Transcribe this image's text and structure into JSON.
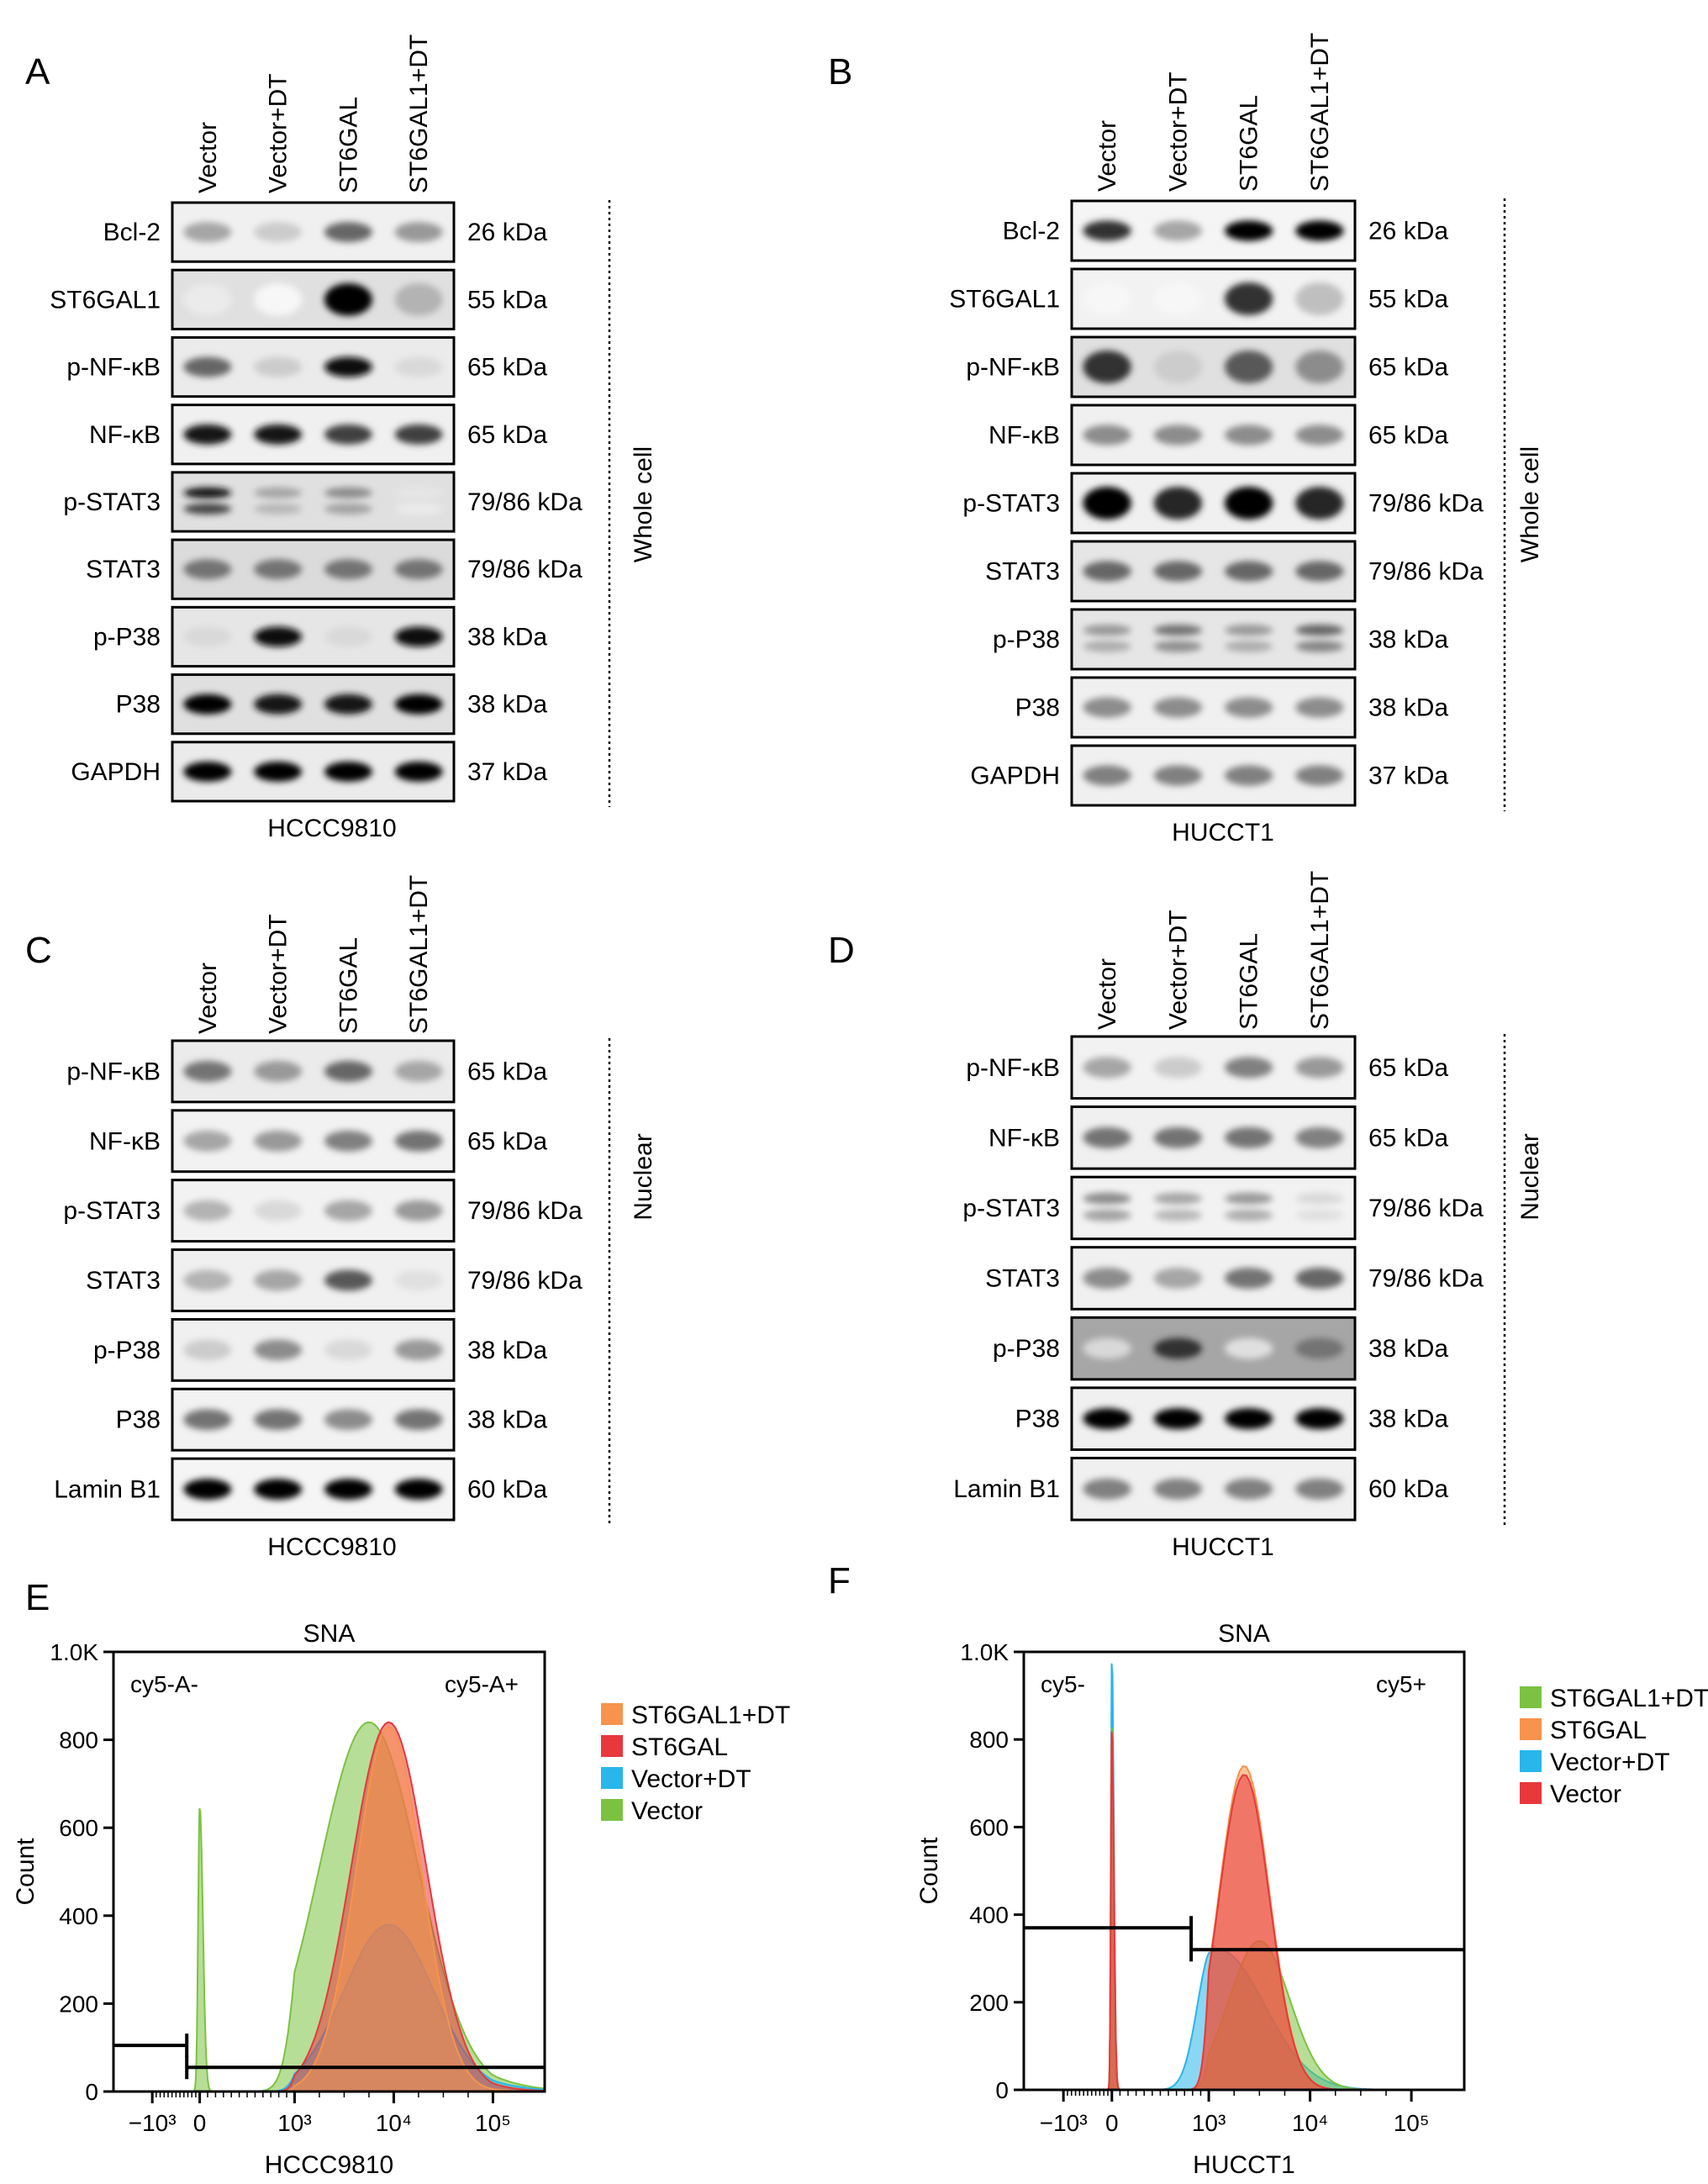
{
  "panels": [
    {
      "id": "wb_a",
      "letter": "A",
      "lanes": [
        "Vector",
        "Vector+DT",
        "ST6GAL",
        "ST6GAL1+DT"
      ],
      "cell_line": "HCCC9810",
      "fraction": "Whole cell",
      "rows": [
        {
          "protein": "Bcl-2",
          "kda": "26 kDa",
          "bands": [
            0.35,
            0.2,
            0.6,
            0.4
          ],
          "bg": 0.06
        },
        {
          "protein": "ST6GAL1",
          "kda": "55 kDa",
          "bands": [
            0.08,
            0.03,
            1.0,
            0.3
          ],
          "bg": 0.12,
          "tall": true
        },
        {
          "protein": "p-NF-κB",
          "kda": "65 kDa",
          "bands": [
            0.6,
            0.2,
            0.95,
            0.15
          ],
          "bg": 0.08
        },
        {
          "protein": "NF-κB",
          "kda": "65 kDa",
          "bands": [
            0.9,
            0.9,
            0.75,
            0.75
          ],
          "bg": 0.06
        },
        {
          "protein": "p-STAT3",
          "kda": "79/86 kDa",
          "bands": [
            0.9,
            0.35,
            0.45,
            0.1
          ],
          "bg": 0.12,
          "double": true
        },
        {
          "protein": "STAT3",
          "kda": "79/86 kDa",
          "bands": [
            0.55,
            0.55,
            0.55,
            0.55
          ],
          "bg": 0.14
        },
        {
          "protein": "p-P38",
          "kda": "38 kDa",
          "bands": [
            0.15,
            0.95,
            0.15,
            0.95
          ],
          "bg": 0.1
        },
        {
          "protein": "P38",
          "kda": "38 kDa",
          "bands": [
            1.0,
            0.9,
            0.9,
            1.0
          ],
          "bg": 0.12
        },
        {
          "protein": "GAPDH",
          "kda": "37 kDa",
          "bands": [
            1.0,
            1.0,
            1.0,
            1.0
          ],
          "bg": 0.08
        }
      ]
    },
    {
      "id": "wb_b",
      "letter": "B",
      "lanes": [
        "Vector",
        "Vector+DT",
        "ST6GAL",
        "ST6GAL1+DT"
      ],
      "cell_line": "HUCCT1",
      "fraction": "Whole cell",
      "rows": [
        {
          "protein": "Bcl-2",
          "kda": "26 kDa",
          "bands": [
            0.8,
            0.35,
            1.0,
            1.0
          ],
          "bg": 0.04
        },
        {
          "protein": "ST6GAL1",
          "kda": "55 kDa",
          "bands": [
            0.03,
            0.03,
            0.8,
            0.25
          ],
          "bg": 0.05,
          "tall": true
        },
        {
          "protein": "p-NF-κB",
          "kda": "65 kDa",
          "bands": [
            0.8,
            0.2,
            0.65,
            0.45
          ],
          "bg": 0.12,
          "tall": true
        },
        {
          "protein": "NF-κB",
          "kda": "65 kDa",
          "bands": [
            0.45,
            0.45,
            0.45,
            0.45
          ],
          "bg": 0.06
        },
        {
          "protein": "p-STAT3",
          "kda": "79/86 kDa",
          "bands": [
            1.0,
            0.85,
            1.0,
            0.85
          ],
          "bg": 0.06,
          "tall": true
        },
        {
          "protein": "STAT3",
          "kda": "79/86 kDa",
          "bands": [
            0.6,
            0.6,
            0.6,
            0.6
          ],
          "bg": 0.1
        },
        {
          "protein": "p-P38",
          "kda": "38 kDa",
          "bands": [
            0.4,
            0.55,
            0.4,
            0.6
          ],
          "bg": 0.1,
          "double": true
        },
        {
          "protein": "P38",
          "kda": "38 kDa",
          "bands": [
            0.45,
            0.45,
            0.45,
            0.45
          ],
          "bg": 0.06
        },
        {
          "protein": "GAPDH",
          "kda": "37 kDa",
          "bands": [
            0.5,
            0.5,
            0.5,
            0.5
          ],
          "bg": 0.06
        }
      ]
    },
    {
      "id": "wb_c",
      "letter": "C",
      "lanes": [
        "Vector",
        "Vector+DT",
        "ST6GAL",
        "ST6GAL1+DT"
      ],
      "cell_line": "HCCC9810",
      "fraction": "Nuclear",
      "rows": [
        {
          "protein": "p-NF-κB",
          "kda": "65 kDa",
          "bands": [
            0.55,
            0.4,
            0.6,
            0.35
          ],
          "bg": 0.08
        },
        {
          "protein": "NF-κB",
          "kda": "65 kDa",
          "bands": [
            0.35,
            0.4,
            0.5,
            0.55
          ],
          "bg": 0.05
        },
        {
          "protein": "p-STAT3",
          "kda": "79/86 kDa",
          "bands": [
            0.3,
            0.15,
            0.35,
            0.4
          ],
          "bg": 0.05
        },
        {
          "protein": "STAT3",
          "kda": "79/86 kDa",
          "bands": [
            0.3,
            0.35,
            0.65,
            0.12
          ],
          "bg": 0.06
        },
        {
          "protein": "p-P38",
          "kda": "38 kDa",
          "bands": [
            0.2,
            0.45,
            0.15,
            0.4
          ],
          "bg": 0.06
        },
        {
          "protein": "P38",
          "kda": "38 kDa",
          "bands": [
            0.55,
            0.55,
            0.45,
            0.55
          ],
          "bg": 0.05
        },
        {
          "protein": "Lamin B1",
          "kda": "60 kDa",
          "bands": [
            1.0,
            1.0,
            1.0,
            1.0
          ],
          "bg": 0.04
        }
      ]
    },
    {
      "id": "wb_d",
      "letter": "D",
      "lanes": [
        "Vector",
        "Vector+DT",
        "ST6GAL",
        "ST6GAL1+DT"
      ],
      "cell_line": "HUCCT1",
      "fraction": "Nuclear",
      "rows": [
        {
          "protein": "p-NF-κB",
          "kda": "65 kDa",
          "bands": [
            0.35,
            0.2,
            0.5,
            0.4
          ],
          "bg": 0.05
        },
        {
          "protein": "NF-κB",
          "kda": "65 kDa",
          "bands": [
            0.55,
            0.55,
            0.55,
            0.5
          ],
          "bg": 0.06
        },
        {
          "protein": "p-STAT3",
          "kda": "79/86 kDa",
          "bands": [
            0.45,
            0.35,
            0.4,
            0.15
          ],
          "bg": 0.05,
          "double": true
        },
        {
          "protein": "STAT3",
          "kda": "79/86 kDa",
          "bands": [
            0.45,
            0.35,
            0.55,
            0.6
          ],
          "bg": 0.06
        },
        {
          "protein": "p-P38",
          "kda": "38 kDa",
          "bands": [
            0.15,
            0.8,
            0.12,
            0.55
          ],
          "bg": 0.35
        },
        {
          "protein": "P38",
          "kda": "38 kDa",
          "bands": [
            1.0,
            1.0,
            1.0,
            1.0
          ],
          "bg": 0.06
        },
        {
          "protein": "Lamin B1",
          "kda": "60 kDa",
          "bands": [
            0.5,
            0.5,
            0.5,
            0.5
          ],
          "bg": 0.06
        }
      ]
    }
  ],
  "chart_data": [
    {
      "type": "area",
      "letter": "E",
      "title": "SNA",
      "xlabel": "HCCC9810",
      "ylabel": "Count",
      "ylim": [
        0,
        1000
      ],
      "y_ticks": [
        "0",
        "200",
        "400",
        "600",
        "800",
        "1.0K"
      ],
      "x_ticks": [
        "−10³",
        "0",
        "10³",
        "10⁴",
        "10⁵"
      ],
      "gate_labels": [
        "cy5-A-",
        "cy5-A+"
      ],
      "legend_position": "right",
      "legend": [
        "ST6GAL1+DT",
        "ST6GAL",
        "Vector+DT",
        "Vector"
      ],
      "colors": {
        "ST6GAL1+DT": "#f7934c",
        "ST6GAL": "#e8383c",
        "Vector+DT": "#29b6ea",
        "Vector": "#7cc242"
      },
      "series": [
        {
          "name": "Vector",
          "peaks": [
            {
              "x": 0.0,
              "y": 650,
              "w": 0.1
            },
            {
              "x": 3.75,
              "y": 840,
              "w": 0.5
            }
          ]
        },
        {
          "name": "Vector+DT",
          "peaks": [
            {
              "x": 3.95,
              "y": 380,
              "w": 0.45
            }
          ]
        },
        {
          "name": "ST6GAL",
          "peaks": [
            {
              "x": 3.95,
              "y": 840,
              "w": 0.38
            }
          ]
        },
        {
          "name": "ST6GAL1+DT",
          "peaks": [
            {
              "x": 3.95,
              "y": 830,
              "w": 0.33
            }
          ]
        }
      ],
      "gate_negative_y": 105,
      "gate_positive_y": 55
    },
    {
      "type": "area",
      "letter": "F",
      "title": "SNA",
      "xlabel": "HUCCT1",
      "ylabel": "Count",
      "ylim": [
        0,
        1000
      ],
      "y_ticks": [
        "0",
        "200",
        "400",
        "600",
        "800",
        "1.0K"
      ],
      "x_ticks": [
        "−10³",
        "0",
        "10³",
        "10⁴",
        "10⁵"
      ],
      "gate_labels": [
        "cy5-",
        "cy5+"
      ],
      "legend_position": "right",
      "legend": [
        "ST6GAL1+DT",
        "ST6GAL",
        "Vector+DT",
        "Vector"
      ],
      "colors": {
        "ST6GAL1+DT": "#7cc242",
        "ST6GAL": "#f7934c",
        "Vector+DT": "#29b6ea",
        "Vector": "#e8383c"
      },
      "series": [
        {
          "name": "Vector+DT",
          "peaks": [
            {
              "x": 0.0,
              "y": 1000,
              "w": 0.06
            },
            {
              "x": 3.1,
              "y": 320,
              "w": 0.45
            }
          ]
        },
        {
          "name": "ST6GAL1+DT",
          "peaks": [
            {
              "x": 0.0,
              "y": 850,
              "w": 0.06
            },
            {
              "x": 3.5,
              "y": 340,
              "w": 0.3
            }
          ]
        },
        {
          "name": "ST6GAL",
          "peaks": [
            {
              "x": 0.0,
              "y": 820,
              "w": 0.06
            },
            {
              "x": 3.35,
              "y": 740,
              "w": 0.25
            }
          ]
        },
        {
          "name": "Vector",
          "peaks": [
            {
              "x": 0.0,
              "y": 840,
              "w": 0.06
            },
            {
              "x": 3.35,
              "y": 720,
              "w": 0.25
            }
          ]
        }
      ],
      "gate_negative_y": 370,
      "gate_positive_y": 320
    }
  ]
}
